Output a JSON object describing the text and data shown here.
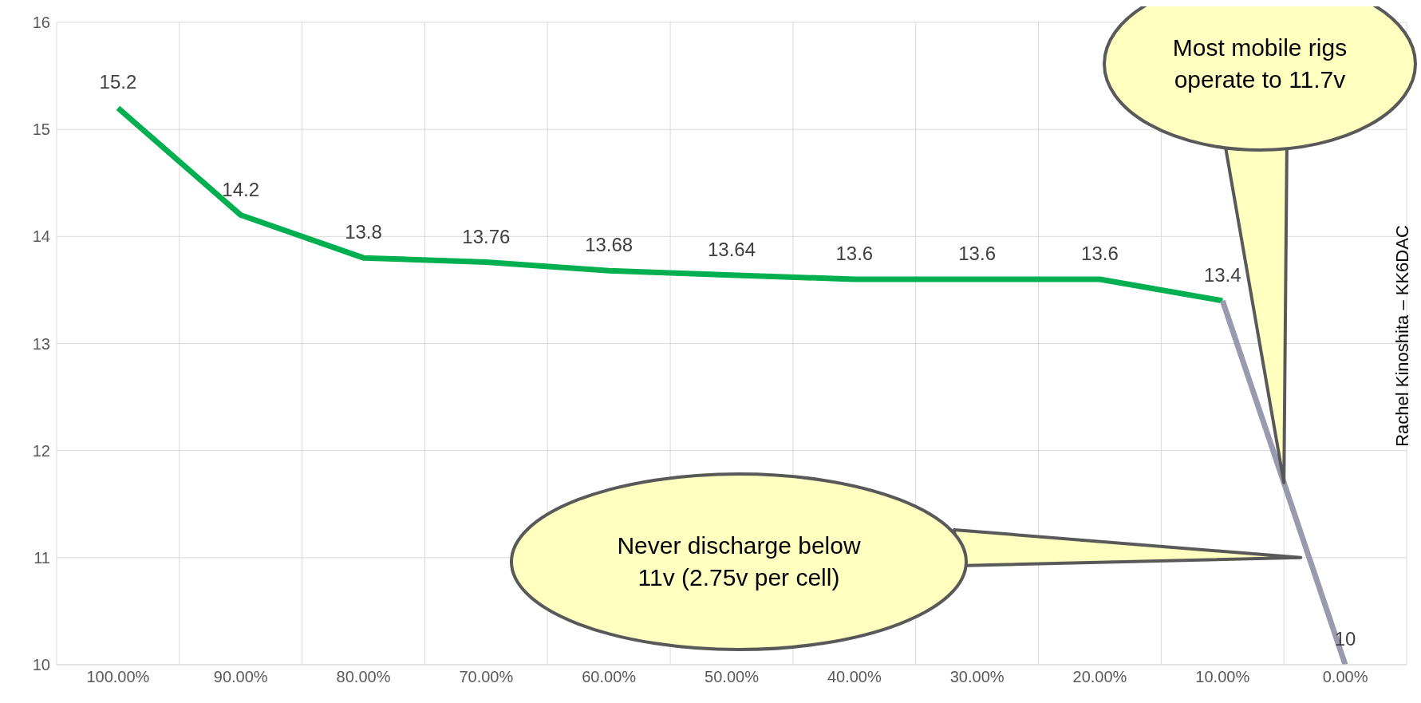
{
  "chart_data": {
    "type": "line",
    "categories": [
      "100.00%",
      "90.00%",
      "80.00%",
      "70.00%",
      "60.00%",
      "50.00%",
      "40.00%",
      "30.00%",
      "20.00%",
      "10.00%",
      "0.00%"
    ],
    "series": [
      {
        "color": "#00b050",
        "values": [
          15.2,
          14.2,
          13.8,
          13.76,
          13.68,
          13.64,
          13.6,
          13.6,
          13.6,
          13.4,
          null
        ],
        "value_labels": [
          "15.2",
          "14.2",
          "13.8",
          "13.76",
          "13.68",
          "13.64",
          "13.6",
          "13.6",
          "13.6",
          "13.4",
          null
        ]
      },
      {
        "color": "#9a9aae",
        "values": [
          null,
          null,
          null,
          null,
          null,
          null,
          null,
          null,
          null,
          13.4,
          10
        ],
        "value_labels": [
          null,
          null,
          null,
          null,
          null,
          null,
          null,
          null,
          null,
          null,
          "10"
        ]
      }
    ],
    "ylim": [
      10,
      16
    ],
    "yticks": [
      10,
      11,
      12,
      13,
      14,
      15,
      16
    ],
    "grid": true,
    "marker": "none",
    "line_style": "solid",
    "annotations": [
      "Most mobile rigs operate to 11.7v",
      "Never discharge below 11v (2.75v per cell)",
      "Rachel Kinoshita – KK6DAC"
    ]
  }
}
